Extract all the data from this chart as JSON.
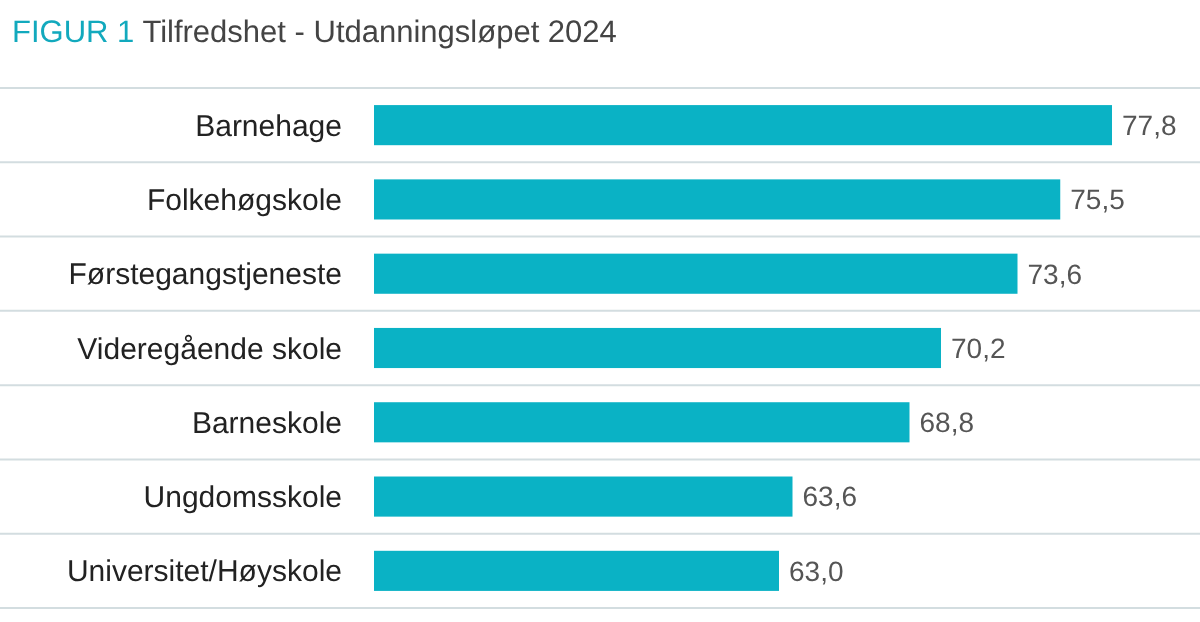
{
  "chart_data": {
    "type": "bar",
    "orientation": "horizontal",
    "title": "FIGUR 1 Tilfredshet - Utdanningsløpet 2024",
    "categories": [
      "Barnehage",
      "Folkehøgskole",
      "Førstegangstjeneste",
      "Videregående skole",
      "Barneskole",
      "Ungdomsskole",
      "Universitet/Høyskole"
    ],
    "values": [
      77.8,
      75.5,
      73.6,
      70.2,
      68.8,
      63.6,
      63.0
    ],
    "value_labels": [
      "77,8",
      "75,5",
      "73,6",
      "70,2",
      "68,8",
      "63,6",
      "63,0"
    ],
    "color": "#0ab2c5",
    "xlim": [
      45,
      77.8
    ],
    "tick_labels": "y",
    "grid": "y"
  }
}
